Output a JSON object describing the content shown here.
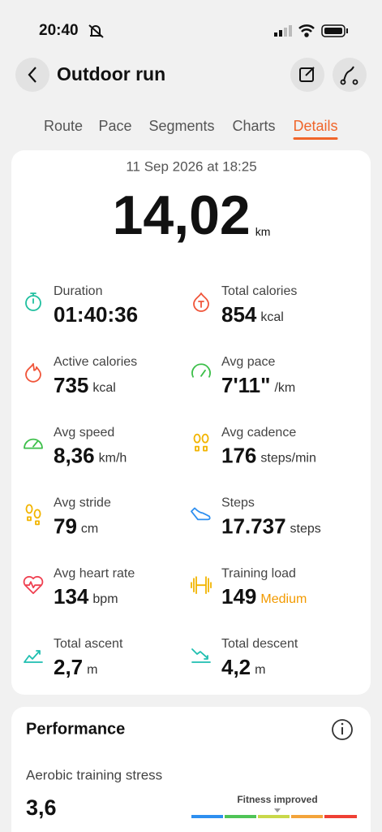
{
  "status_bar": {
    "time": "20:40"
  },
  "header": {
    "title": "Outdoor run"
  },
  "tabs": [
    "Route",
    "Pace",
    "Segments",
    "Charts",
    "Details"
  ],
  "summary": {
    "date": "11 Sep 2026 at 18:25",
    "distance": "14,02",
    "distance_unit": "km",
    "metrics": [
      {
        "label": "Duration",
        "value": "01:40:36"
      },
      {
        "label": "Total calories",
        "value": "854",
        "unit": "kcal"
      },
      {
        "label": "Active calories",
        "value": "735",
        "unit": "kcal"
      },
      {
        "label": "Avg pace",
        "value": "7'11\"",
        "unit": "/km"
      },
      {
        "label": "Avg speed",
        "value": "8,36",
        "unit": "km/h"
      },
      {
        "label": "Avg cadence",
        "value": "176",
        "unit": "steps/min"
      },
      {
        "label": "Avg stride",
        "value": "79",
        "unit": "cm"
      },
      {
        "label": "Steps",
        "value": "17.737",
        "unit": "steps"
      },
      {
        "label": "Avg heart rate",
        "value": "134",
        "unit": "bpm"
      },
      {
        "label": "Training load",
        "value": "149",
        "unit": "Medium"
      },
      {
        "label": "Total ascent",
        "value": "2,7",
        "unit": "m"
      },
      {
        "label": "Total descent",
        "value": "4,2",
        "unit": "m"
      }
    ]
  },
  "performance": {
    "title": "Performance",
    "metric_label": "Aerobic training stress",
    "metric_value": "3,6",
    "status": "Fitness improved"
  }
}
